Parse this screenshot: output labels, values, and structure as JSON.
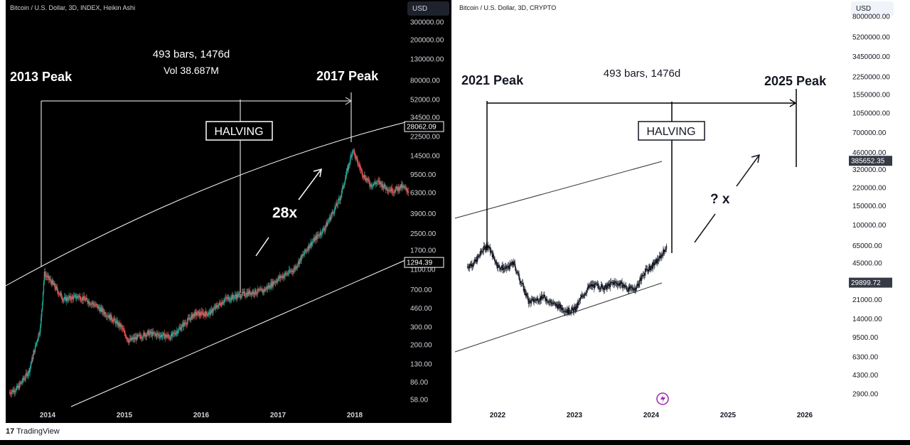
{
  "left_chart": {
    "header": "Bitcoin / U.S. Dollar, 3D, INDEX, Heikin Ashi",
    "currency": "USD",
    "price_labels": [
      "300000.00",
      "200000.00",
      "130000.00",
      "80000.00",
      "52000.00",
      "34500.00",
      "22500.00",
      "14500.00",
      "9500.00",
      "6300.00",
      "3900.00",
      "2500.00",
      "1700.00",
      "1100.00",
      "700.00",
      "460.00",
      "300.00",
      "200.00",
      "130.00",
      "86.00",
      "58.00"
    ],
    "price_values": [
      300000,
      200000,
      130000,
      80000,
      52000,
      34500,
      22500,
      14500,
      9500,
      6300,
      3900,
      2500,
      1700,
      1100,
      700,
      460,
      300,
      200,
      130,
      86,
      58
    ],
    "year_labels": [
      "2014",
      "2015",
      "2016",
      "2017",
      "2018"
    ],
    "year_values": [
      2014,
      2015,
      2016,
      2017,
      2018
    ],
    "badges": [
      {
        "text": "28062.09",
        "value": 28062.09
      },
      {
        "text": "1294.39",
        "value": 1294.39
      }
    ],
    "annotations": {
      "measure_line1": "493 bars, 1476d",
      "measure_line2": "Vol 38.687M",
      "peak_start": "2013 Peak",
      "peak_end": "2017 Peak",
      "halving": "HALVING",
      "multiplier": "28x"
    }
  },
  "right_chart": {
    "header": "Bitcoin / U.S. Dollar, 3D, CRYPTO",
    "currency": "USD",
    "price_labels": [
      "8000000.00",
      "5200000.00",
      "3450000.00",
      "2250000.00",
      "1550000.00",
      "1050000.00",
      "700000.00",
      "460000.00",
      "320000.00",
      "220000.00",
      "150000.00",
      "100000.00",
      "65000.00",
      "45000.00",
      "21000.00",
      "14000.00",
      "9500.00",
      "6300.00",
      "4300.00",
      "2900.00"
    ],
    "price_values": [
      8000000,
      5200000,
      3450000,
      2250000,
      1550000,
      1050000,
      700000,
      460000,
      320000,
      220000,
      150000,
      100000,
      65000,
      45000,
      21000,
      14000,
      9500,
      6300,
      4300,
      2900
    ],
    "year_labels": [
      "2022",
      "2023",
      "2024",
      "2025",
      "2026"
    ],
    "year_values": [
      2022,
      2023,
      2024,
      2025,
      2026
    ],
    "badges": [
      {
        "text": "385652.35",
        "value": 385652.35
      },
      {
        "text": "29899.72",
        "value": 29899.72
      }
    ],
    "annotations": {
      "measure_line1": "493 bars, 1476d",
      "peak_start": "2021 Peak",
      "peak_end": "2025 Peak",
      "halving": "HALVING",
      "multiplier": "? x"
    }
  },
  "chart_data": [
    {
      "type": "line",
      "title": "Bitcoin / U.S. Dollar, 3D, INDEX, Heikin Ashi",
      "xlabel": "",
      "ylabel": "USD (log scale)",
      "x_range": [
        2013.5,
        2018.9
      ],
      "ylim": [
        45,
        380000
      ],
      "series": [
        {
          "name": "BTCUSD",
          "x": [
            2013.5,
            2013.6,
            2013.75,
            2013.9,
            2013.95,
            2014.05,
            2014.2,
            2014.4,
            2014.6,
            2014.8,
            2014.95,
            2015.05,
            2015.3,
            2015.6,
            2015.9,
            2016.1,
            2016.3,
            2016.5,
            2016.6,
            2016.8,
            2017.0,
            2017.2,
            2017.4,
            2017.6,
            2017.8,
            2017.97,
            2018.0,
            2018.1,
            2018.2,
            2018.3,
            2018.4,
            2018.5,
            2018.6,
            2018.7
          ],
          "y": [
            68,
            75,
            110,
            300,
            1000,
            820,
            560,
            600,
            500,
            380,
            300,
            220,
            260,
            240,
            400,
            410,
            560,
            620,
            650,
            680,
            900,
            1100,
            1900,
            2800,
            5500,
            17000,
            14000,
            9500,
            7500,
            8000,
            7000,
            6600,
            7200,
            6500
          ]
        }
      ],
      "annotations": [
        "2013 Peak",
        "2017 Peak",
        "HALVING",
        "28x",
        "493 bars, 1476d",
        "Vol 38.687M"
      ]
    },
    {
      "type": "line",
      "title": "Bitcoin / U.S. Dollar, 3D, CRYPTO",
      "xlabel": "",
      "ylabel": "USD (log scale)",
      "x_range": [
        2021.6,
        2026.2
      ],
      "ylim": [
        2500,
        9000000
      ],
      "series": [
        {
          "name": "BTCUSD",
          "x": [
            2021.6,
            2021.7,
            2021.8,
            2021.86,
            2022.0,
            2022.1,
            2022.2,
            2022.3,
            2022.4,
            2022.5,
            2022.6,
            2022.7,
            2022.8,
            2022.9,
            2023.0,
            2023.1,
            2023.2,
            2023.3,
            2023.4,
            2023.5,
            2023.6,
            2023.7,
            2023.8,
            2023.9,
            2024.0,
            2024.1,
            2024.2
          ],
          "y": [
            42000,
            46000,
            60000,
            66000,
            42000,
            40000,
            45000,
            30000,
            20000,
            21000,
            22000,
            19500,
            18000,
            16500,
            17000,
            23000,
            28000,
            28000,
            27000,
            30000,
            29000,
            26000,
            27000,
            37000,
            42000,
            50000,
            65000
          ]
        }
      ],
      "annotations": [
        "2021 Peak",
        "2025 Peak",
        "HALVING",
        "? x",
        "493 bars, 1476d"
      ]
    }
  ],
  "footer": {
    "brand": "TradingView"
  }
}
